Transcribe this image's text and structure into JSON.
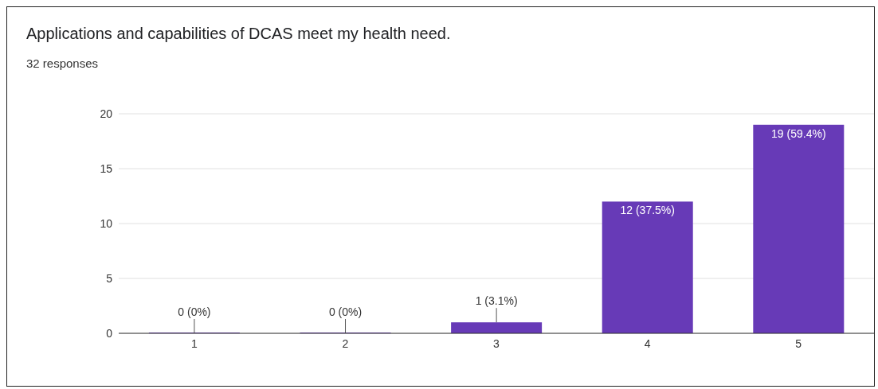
{
  "chart_data": {
    "type": "bar",
    "title": "Applications and capabilities of DCAS meet my health need.",
    "subtitle": "32 responses",
    "categories": [
      "1",
      "2",
      "3",
      "4",
      "5"
    ],
    "values": [
      0,
      0,
      1,
      12,
      19
    ],
    "value_labels": [
      "0 (0%)",
      "0 (0%)",
      "1 (3.1%)",
      "12 (37.5%)",
      "19 (59.4%)"
    ],
    "color": "#673ab7",
    "ylim": [
      0,
      20
    ],
    "yticks": [
      0,
      5,
      10,
      15,
      20
    ],
    "grid": "y"
  }
}
